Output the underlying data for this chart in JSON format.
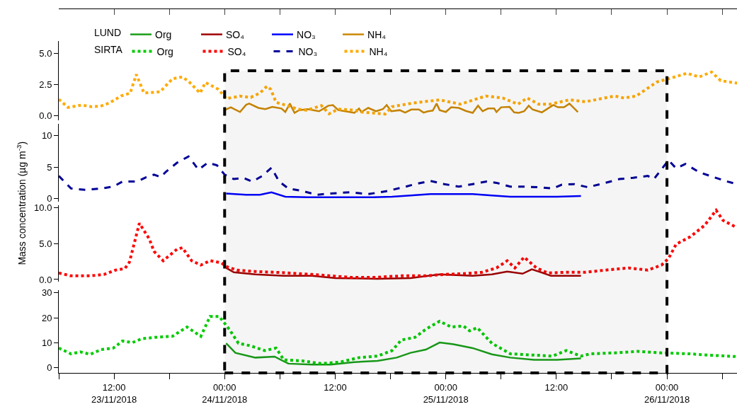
{
  "chart_data": [
    {
      "type": "line",
      "tick_labels": "y",
      "legend": "top left",
      "annotations": [
        "LUND",
        "SIRTA"
      ],
      "xlim": [
        "2018-11-23T06:00",
        "2018-11-26T07:36"
      ],
      "ylim": [
        -0.4,
        6.0
      ],
      "yticks": [
        {
          "value": 0,
          "label": "0.0"
        },
        2.5,
        {
          "value": 5,
          "label": "5.0"
        }
      ],
      "bands": [
        {
          "axis": "x",
          "from": "2018-11-24T00:00",
          "to": "2018-11-26T00:00",
          "color": "#000000"
        }
      ],
      "series": [
        {
          "name": "NH₄",
          "color": "#cc8800",
          "line_style": "solid",
          "x": [
            "2018-11-24T00:00",
            "2018-11-24T00:40",
            "2018-11-24T01:40",
            "2018-11-24T02:20",
            "2018-11-24T02:40",
            "2018-11-24T03:40",
            "2018-11-24T04:25",
            "2018-11-24T05:10",
            "2018-11-24T06:10",
            "2018-11-24T06:35",
            "2018-11-24T07:05",
            "2018-11-24T07:35",
            "2018-11-24T08:05",
            "2018-11-24T09:00",
            "2018-11-24T10:15",
            "2018-11-24T11:15",
            "2018-11-24T11:45",
            "2018-11-24T12:20",
            "2018-11-24T13:20",
            "2018-11-24T14:05",
            "2018-11-24T14:35",
            "2018-11-24T14:50",
            "2018-11-24T15:35",
            "2018-11-24T16:25",
            "2018-11-24T17:10",
            "2018-11-24T17:35",
            "2018-11-24T18:05",
            "2018-11-24T19:00",
            "2018-11-24T19:35",
            "2018-11-24T20:15",
            "2018-11-24T21:05",
            "2018-11-24T21:35",
            "2018-11-24T22:05",
            "2018-11-24T22:35",
            "2018-11-24T23:00",
            "2018-11-24T23:20",
            "2018-11-25T00:00",
            "2018-11-25T00:35",
            "2018-11-25T01:25",
            "2018-11-25T02:10",
            "2018-11-25T02:55",
            "2018-11-25T03:30",
            "2018-11-25T04:00",
            "2018-11-25T04:35",
            "2018-11-25T05:15",
            "2018-11-25T05:30",
            "2018-11-25T06:00",
            "2018-11-25T06:55",
            "2018-11-25T07:25",
            "2018-11-25T07:55",
            "2018-11-25T08:30",
            "2018-11-25T09:00",
            "2018-11-25T09:25",
            "2018-11-25T10:25",
            "2018-11-25T11:40",
            "2018-11-25T12:10",
            "2018-11-25T12:50",
            "2018-11-25T13:25",
            "2018-11-25T14:20"
          ],
          "values": [
            0.42,
            0.65,
            0.27,
            0.85,
            0.95,
            0.6,
            0.5,
            0.68,
            0.55,
            0.27,
            0.95,
            0.2,
            0.42,
            0.5,
            0.33,
            0.78,
            0.83,
            0.42,
            0.3,
            0.2,
            0.55,
            0.27,
            0.6,
            0.33,
            0.5,
            0.83,
            0.33,
            0.42,
            0.22,
            0.47,
            0.47,
            0.22,
            0.33,
            0.38,
            0.95,
            0.42,
            0.27,
            0.65,
            0.6,
            0.36,
            0.2,
            0.78,
            0.33,
            0.55,
            0.55,
            0.27,
            0.65,
            0.68,
            0.24,
            0.2,
            0.33,
            0.78,
            0.47,
            0.24,
            0.83,
            0.65,
            0.65,
            0.95,
            0.27
          ]
        },
        {
          "name": "NH₄",
          "color": "#ffaa00",
          "line_style": "dotted",
          "x": [
            "2018-11-23T06:00",
            "2018-11-23T07:00",
            "2018-11-23T08:30",
            "2018-11-23T09:30",
            "2018-11-23T10:30",
            "2018-11-23T11:30",
            "2018-11-23T12:45",
            "2018-11-23T13:45",
            "2018-11-23T14:25",
            "2018-11-23T15:15",
            "2018-11-23T17:00",
            "2018-11-23T18:20",
            "2018-11-23T19:25",
            "2018-11-23T20:05",
            "2018-11-23T21:20",
            "2018-11-23T21:55",
            "2018-11-23T23:20",
            "2018-11-24T00:10",
            "2018-11-24T01:40",
            "2018-11-24T02:50",
            "2018-11-24T03:50",
            "2018-11-24T04:35",
            "2018-11-24T05:00",
            "2018-11-24T05:35",
            "2018-11-24T07:10",
            "2018-11-24T07:55",
            "2018-11-24T08:55",
            "2018-11-24T10:30",
            "2018-11-24T11:20",
            "2018-11-24T12:20",
            "2018-11-24T14:05",
            "2018-11-24T14:50",
            "2018-11-24T17:25",
            "2018-11-24T18:10",
            "2018-11-24T20:30",
            "2018-11-24T23:20",
            "2018-11-25T01:35",
            "2018-11-25T04:20",
            "2018-11-25T06:10",
            "2018-11-25T07:50",
            "2018-11-25T08:50",
            "2018-11-25T10:05",
            "2018-11-25T11:20",
            "2018-11-25T13:25",
            "2018-11-25T15:10",
            "2018-11-25T18:20",
            "2018-11-25T19:20",
            "2018-11-25T20:40",
            "2018-11-25T22:55",
            "2018-11-26T00:10",
            "2018-11-26T02:10",
            "2018-11-26T03:30",
            "2018-11-26T04:50",
            "2018-11-26T05:50",
            "2018-11-26T07:36"
          ],
          "values": [
            1.3,
            0.64,
            0.83,
            0.7,
            0.73,
            1.0,
            1.56,
            1.8,
            3.3,
            1.8,
            1.9,
            2.95,
            3.1,
            2.75,
            1.8,
            2.65,
            2.1,
            1.35,
            1.55,
            1.45,
            1.8,
            2.35,
            2.1,
            1.05,
            0.7,
            0.5,
            0.42,
            0.78,
            0.13,
            0.5,
            0.42,
            0.27,
            0.1,
            0.7,
            1.0,
            1.25,
            0.9,
            1.56,
            1.4,
            0.9,
            1.4,
            0.9,
            0.9,
            1.25,
            1.1,
            1.56,
            1.4,
            1.56,
            2.7,
            2.95,
            3.4,
            3.1,
            3.5,
            2.8,
            2.6
          ]
        }
      ]
    },
    {
      "type": "line",
      "tick_labels": "y",
      "legend": "top left",
      "ylabel": "Mass concentration (µg m$^{-3}$)",
      "xlim": [
        "2018-11-23T06:00",
        "2018-11-26T07:36"
      ],
      "ylim": [
        -0.5,
        11.9
      ],
      "yticks": [
        0,
        5,
        10
      ],
      "series": [
        {
          "name": "NO₃",
          "color": "#0000ff",
          "line_style": "solid",
          "x": [
            "2018-11-24T00:10",
            "2018-11-24T02:20",
            "2018-11-24T03:50",
            "2018-11-24T05:05",
            "2018-11-24T06:35",
            "2018-11-24T09:00",
            "2018-11-24T12:30",
            "2018-11-24T16:05",
            "2018-11-24T18:10",
            "2018-11-24T20:10",
            "2018-11-24T22:20",
            "2018-11-25T00:50",
            "2018-11-25T02:55",
            "2018-11-25T05:00",
            "2018-11-25T07:00",
            "2018-11-25T09:35",
            "2018-11-25T12:05",
            "2018-11-25T14:40"
          ],
          "values": [
            0.8,
            0.6,
            0.6,
            1.0,
            0.3,
            0.2,
            0.2,
            0.2,
            0.3,
            0.5,
            0.7,
            0.7,
            0.7,
            0.5,
            0.3,
            0.3,
            0.3,
            0.4
          ]
        },
        {
          "name": "NO₃",
          "color": "#000099",
          "line_style": "dashed",
          "x": [
            "2018-11-23T06:00",
            "2018-11-23T07:20",
            "2018-11-23T08:50",
            "2018-11-23T10:35",
            "2018-11-23T11:55",
            "2018-11-23T12:55",
            "2018-11-23T14:30",
            "2018-11-23T15:30",
            "2018-11-23T16:20",
            "2018-11-23T17:05",
            "2018-11-23T17:35",
            "2018-11-23T18:50",
            "2018-11-23T20:05",
            "2018-11-23T21:10",
            "2018-11-23T22:10",
            "2018-11-23T23:10",
            "2018-11-24T00:00",
            "2018-11-24T01:00",
            "2018-11-24T02:00",
            "2018-11-24T03:00",
            "2018-11-24T04:05",
            "2018-11-24T05:05",
            "2018-11-24T05:55",
            "2018-11-24T06:55",
            "2018-11-24T08:25",
            "2018-11-24T10:00",
            "2018-11-24T11:30",
            "2018-11-24T13:35",
            "2018-11-24T15:35",
            "2018-11-24T17:40",
            "2018-11-24T19:40",
            "2018-11-24T20:40",
            "2018-11-24T22:20",
            "2018-11-24T23:50",
            "2018-11-25T01:25",
            "2018-11-25T02:55",
            "2018-11-25T04:25",
            "2018-11-25T05:30",
            "2018-11-25T07:00",
            "2018-11-25T08:30",
            "2018-11-25T10:05",
            "2018-11-25T11:35",
            "2018-11-25T12:35",
            "2018-11-25T13:55",
            "2018-11-25T15:25",
            "2018-11-25T17:20",
            "2018-11-25T18:50",
            "2018-11-25T20:20",
            "2018-11-25T21:55",
            "2018-11-25T22:35",
            "2018-11-26T00:10",
            "2018-11-26T01:00",
            "2018-11-26T02:00",
            "2018-11-26T03:30",
            "2018-11-26T05:05",
            "2018-11-26T06:35",
            "2018-11-26T07:35"
          ],
          "values": [
            3.6,
            1.6,
            1.4,
            1.6,
            1.9,
            2.7,
            2.7,
            3.4,
            3.8,
            3.4,
            4.2,
            5.7,
            6.7,
            4.6,
            5.7,
            5.3,
            3.8,
            3.1,
            3.3,
            2.7,
            3.6,
            4.9,
            2.7,
            1.6,
            1.2,
            0.6,
            0.8,
            1.0,
            0.7,
            1.2,
            1.9,
            2.3,
            2.8,
            2.3,
            1.9,
            2.3,
            2.7,
            2.5,
            1.9,
            1.9,
            1.8,
            1.6,
            2.2,
            2.3,
            1.8,
            2.5,
            3.1,
            3.3,
            3.6,
            3.1,
            6.1,
            4.8,
            5.5,
            4.2,
            3.4,
            2.7,
            2.3
          ]
        }
      ]
    },
    {
      "type": "line",
      "tick_labels": "y",
      "legend": "top left",
      "xlim": [
        "2018-11-23T06:00",
        "2018-11-26T07:36"
      ],
      "ylim": [
        -0.3,
        10.3
      ],
      "yticks": [
        {
          "value": 0,
          "label": "0.0"
        },
        {
          "value": 5,
          "label": "5.0"
        },
        {
          "value": 10,
          "label": "10.0"
        }
      ],
      "series": [
        {
          "name": "SO₄",
          "color": "#a00000",
          "line_style": "solid",
          "x": [
            "2018-11-24T00:10",
            "2018-11-24T01:00",
            "2018-11-24T03:20",
            "2018-11-24T06:25",
            "2018-11-24T09:30",
            "2018-11-24T12:00",
            "2018-11-24T16:35",
            "2018-11-24T20:10",
            "2018-11-24T23:20",
            "2018-11-25T02:55",
            "2018-11-25T05:00",
            "2018-11-25T06:40",
            "2018-11-25T08:20",
            "2018-11-25T09:20",
            "2018-11-25T10:20",
            "2018-11-25T11:25",
            "2018-11-25T13:05",
            "2018-11-25T14:40"
          ],
          "values": [
            1.6,
            1.0,
            0.7,
            0.5,
            0.5,
            0.2,
            0.1,
            0.2,
            0.7,
            0.5,
            0.7,
            1.1,
            0.8,
            1.4,
            1.0,
            0.5,
            0.5,
            0.5
          ]
        },
        {
          "name": "SO₄",
          "color": "#ff0000",
          "line_style": "dotted",
          "x": [
            "2018-11-23T06:00",
            "2018-11-23T07:20",
            "2018-11-23T09:25",
            "2018-11-23T10:55",
            "2018-11-23T12:10",
            "2018-11-23T13:10",
            "2018-11-23T13:40",
            "2018-11-23T14:45",
            "2018-11-23T15:50",
            "2018-11-23T16:20",
            "2018-11-23T17:20",
            "2018-11-23T18:50",
            "2018-11-23T19:25",
            "2018-11-23T20:25",
            "2018-11-23T21:25",
            "2018-11-23T22:25",
            "2018-11-23T23:40",
            "2018-11-24T00:10",
            "2018-11-24T01:20",
            "2018-11-24T03:20",
            "2018-11-24T05:25",
            "2018-11-24T06:55",
            "2018-11-24T09:30",
            "2018-11-24T11:30",
            "2018-11-24T13:35",
            "2018-11-24T16:35",
            "2018-11-24T19:10",
            "2018-11-24T21:50",
            "2018-11-24T23:50",
            "2018-11-25T01:55",
            "2018-11-25T03:55",
            "2018-11-25T05:30",
            "2018-11-25T06:40",
            "2018-11-25T07:30",
            "2018-11-25T08:30",
            "2018-11-25T09:50",
            "2018-11-25T11:05",
            "2018-11-25T13:05",
            "2018-11-25T15:10",
            "2018-11-25T17:20",
            "2018-11-25T19:50",
            "2018-11-25T21:55",
            "2018-11-25T23:25",
            "2018-11-26T00:10",
            "2018-11-26T01:00",
            "2018-11-26T02:30",
            "2018-11-26T04:05",
            "2018-11-26T05:20",
            "2018-11-26T06:05",
            "2018-11-26T07:35"
          ],
          "values": [
            0.9,
            0.5,
            0.5,
            0.7,
            1.3,
            1.5,
            2.4,
            7.8,
            5.6,
            3.9,
            2.6,
            4.2,
            4.4,
            2.6,
            2.0,
            2.6,
            2.3,
            1.8,
            1.3,
            1.1,
            1.0,
            0.9,
            0.7,
            0.5,
            0.3,
            0.3,
            0.5,
            0.5,
            0.7,
            0.8,
            1.0,
            1.6,
            2.6,
            1.6,
            3.1,
            1.6,
            0.9,
            1.0,
            1.0,
            1.3,
            1.6,
            1.3,
            2.0,
            2.9,
            4.9,
            5.9,
            7.5,
            9.6,
            8.2,
            7.2
          ]
        }
      ]
    },
    {
      "type": "line",
      "legend": "top left",
      "xlim": [
        "2018-11-23T06:00",
        "2018-11-26T07:36"
      ],
      "ylim": [
        -2,
        31
      ],
      "yticks": [
        0,
        10,
        20,
        30
      ],
      "xticks": [
        {
          "value": "2018-11-23T06:00",
          "label": null
        },
        {
          "value": "2018-11-23T12:00",
          "label": "12:00\n23/11/2018"
        },
        {
          "value": "2018-11-23T18:00",
          "label": null
        },
        {
          "value": "2018-11-24T00:00",
          "label": "00:00\n24/11/2018"
        },
        {
          "value": "2018-11-24T06:00",
          "label": null
        },
        {
          "value": "2018-11-24T12:00",
          "label": "12:00"
        },
        {
          "value": "2018-11-24T18:00",
          "label": null
        },
        {
          "value": "2018-11-25T00:00",
          "label": "00:00\n25/11/2018"
        },
        {
          "value": "2018-11-25T06:00",
          "label": null
        },
        {
          "value": "2018-11-25T12:00",
          "label": "12:00"
        },
        {
          "value": "2018-11-25T18:00",
          "label": null
        },
        {
          "value": "2018-11-26T00:00",
          "label": "00:00\n26/11/2018"
        },
        {
          "value": "2018-11-26T06:00",
          "label": null
        }
      ],
      "series": [
        {
          "name": "Org",
          "color": "#1a9e1a",
          "line_style": "solid",
          "x": [
            "2018-11-24T00:10",
            "2018-11-24T01:10",
            "2018-11-24T03:20",
            "2018-11-24T05:25",
            "2018-11-24T06:55",
            "2018-11-24T09:30",
            "2018-11-24T11:30",
            "2018-11-24T14:05",
            "2018-11-24T16:35",
            "2018-11-24T18:40",
            "2018-11-24T20:10",
            "2018-11-24T21:50",
            "2018-11-24T23:20",
            "2018-11-25T00:50",
            "2018-11-25T02:55",
            "2018-11-25T05:00",
            "2018-11-25T07:00",
            "2018-11-25T09:35",
            "2018-11-25T12:05",
            "2018-11-25T14:40"
          ],
          "values": [
            9.8,
            6.0,
            4.1,
            4.5,
            1.7,
            1.3,
            1.3,
            2.3,
            2.8,
            4.1,
            6.0,
            7.3,
            10.1,
            9.4,
            7.9,
            5.4,
            4.1,
            3.2,
            3.2,
            3.8
          ]
        },
        {
          "name": "Org",
          "color": "#00cc00",
          "line_style": "dotted",
          "x": [
            "2018-11-23T06:00",
            "2018-11-23T07:20",
            "2018-11-23T08:20",
            "2018-11-23T09:25",
            "2018-11-23T10:35",
            "2018-11-23T11:55",
            "2018-11-23T12:55",
            "2018-11-23T14:00",
            "2018-11-23T15:00",
            "2018-11-23T16:30",
            "2018-11-23T18:20",
            "2018-11-23T19:55",
            "2018-11-23T21:25",
            "2018-11-23T22:25",
            "2018-11-23T23:25",
            "2018-11-24T00:30",
            "2018-11-24T01:30",
            "2018-11-24T02:50",
            "2018-11-24T04:20",
            "2018-11-24T05:35",
            "2018-11-24T06:25",
            "2018-11-24T08:25",
            "2018-11-24T10:30",
            "2018-11-24T12:30",
            "2018-11-24T14:35",
            "2018-11-24T16:35",
            "2018-11-24T18:10",
            "2018-11-24T19:10",
            "2018-11-24T20:40",
            "2018-11-24T21:50",
            "2018-11-24T23:20",
            "2018-11-25T00:35",
            "2018-11-25T01:55",
            "2018-11-25T02:35",
            "2018-11-25T03:25",
            "2018-11-25T05:00",
            "2018-11-25T07:00",
            "2018-11-25T09:35",
            "2018-11-25T11:35",
            "2018-11-25T13:05",
            "2018-11-25T14:40",
            "2018-11-25T15:40",
            "2018-11-25T18:20",
            "2018-11-25T20:50",
            "2018-11-25T23:25",
            "2018-11-26T02:30",
            "2018-11-26T04:30",
            "2018-11-26T07:35"
          ],
          "values": [
            7.9,
            5.6,
            6.4,
            5.4,
            7.3,
            7.9,
            10.7,
            10.1,
            11.6,
            12.2,
            12.6,
            16.3,
            12.6,
            20.5,
            20.5,
            15.4,
            9.8,
            8.8,
            6.9,
            7.9,
            3.2,
            2.8,
            1.7,
            2.3,
            4.1,
            4.7,
            6.9,
            11.1,
            12.2,
            15.4,
            18.6,
            16.3,
            16.7,
            14.8,
            16.0,
            9.8,
            5.6,
            5.1,
            4.7,
            6.9,
            4.7,
            5.6,
            6.0,
            6.6,
            6.0,
            5.6,
            5.1,
            4.5
          ]
        }
      ]
    }
  ]
}
